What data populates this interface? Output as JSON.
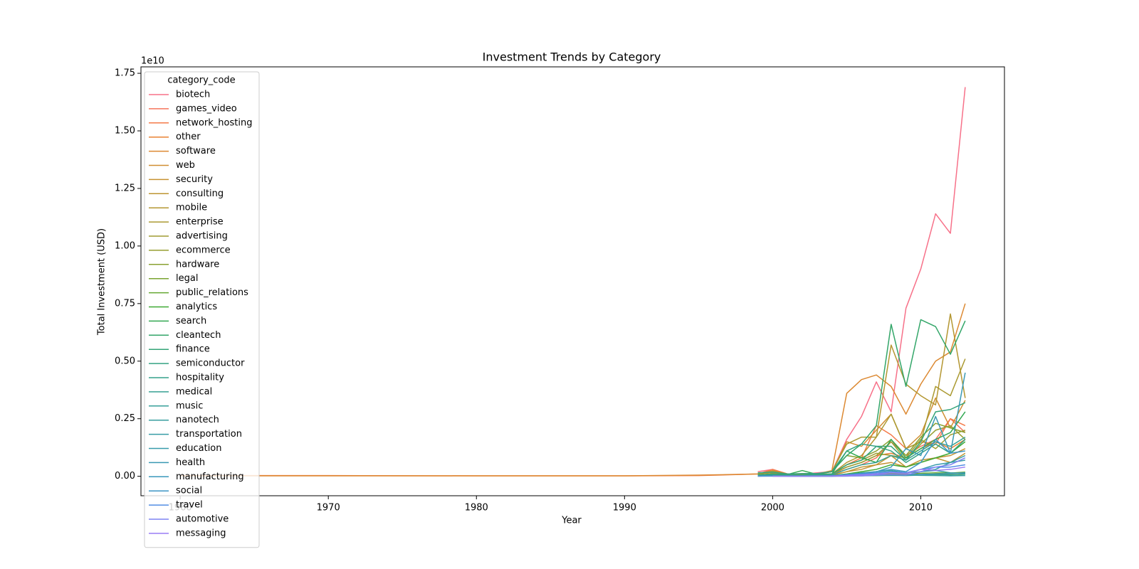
{
  "chart_data": {
    "type": "line",
    "title": "Investment Trends by Category",
    "x_label": "Year",
    "y_label": "Total Investment (USD)",
    "y_offset_text": "1e10",
    "legend_title": "category_code",
    "legend": "upper left",
    "grid": false,
    "xlim": [
      1957.35,
      2015.65
    ],
    "xticks": [
      1960,
      1970,
      1980,
      1990,
      2000,
      2010
    ],
    "ylim": [
      -845000000,
      17780000000
    ],
    "yticks": [
      {
        "value": 0,
        "label": "0.00"
      },
      {
        "value": 2500000000,
        "label": "0.25"
      },
      {
        "value": 5000000000,
        "label": "0.50"
      },
      {
        "value": 7500000000,
        "label": "0.75"
      },
      {
        "value": 10000000000,
        "label": "1.00"
      },
      {
        "value": 12500000000,
        "label": "1.25"
      },
      {
        "value": 15000000000,
        "label": "1.50"
      },
      {
        "value": 17500000000,
        "label": "1.75"
      }
    ],
    "x": [
      1960,
      1970,
      1980,
      1990,
      1995,
      1999,
      2000,
      2001,
      2002,
      2003,
      2004,
      2005,
      2006,
      2007,
      2008,
      2009,
      2010,
      2011,
      2012,
      2013
    ],
    "series": [
      {
        "name": "biotech",
        "color": "#f77189",
        "values": [
          null,
          null,
          null,
          null,
          null,
          200000000.0,
          300000000.0,
          100000000.0,
          100000000.0,
          150000000.0,
          200000000.0,
          1600000000.0,
          2600000000.0,
          4100000000.0,
          2800000000.0,
          7300000000.0,
          9000000000.0,
          11400000000.0,
          10550000000.0,
          16900000000.0
        ]
      },
      {
        "name": "games_video",
        "color": "#f6745c",
        "values": [
          null,
          null,
          null,
          null,
          null,
          50000000.0,
          100000000.0,
          50000000.0,
          50000000.0,
          50000000.0,
          100000000.0,
          300000000.0,
          500000000.0,
          800000000.0,
          1500000000.0,
          900000000.0,
          1300000000.0,
          1600000000.0,
          2500000000.0,
          1900000000.0
        ]
      },
      {
        "name": "network_hosting",
        "color": "#f47a49",
        "values": [
          30000000.0,
          30000000.0,
          20000000.0,
          20000000.0,
          30000000.0,
          100000000.0,
          300000000.0,
          100000000.0,
          50000000.0,
          80000000.0,
          100000000.0,
          500000000.0,
          800000000.0,
          2200000000.0,
          1800000000.0,
          1200000000.0,
          1500000000.0,
          1400000000.0,
          2500000000.0,
          2200000000.0
        ]
      },
      {
        "name": "other",
        "color": "#e98132",
        "values": [
          null,
          null,
          null,
          null,
          null,
          50000000.0,
          100000000.0,
          100000000.0,
          50000000.0,
          50000000.0,
          100000000.0,
          400000000.0,
          600000000.0,
          900000000.0,
          1000000000.0,
          800000000.0,
          1200000000.0,
          1500000000.0,
          1200000000.0,
          1600000000.0
        ]
      },
      {
        "name": "software",
        "color": "#dc8932",
        "values": [
          20000000.0,
          20000000.0,
          20000000.0,
          20000000.0,
          50000000.0,
          100000000.0,
          200000000.0,
          100000000.0,
          100000000.0,
          100000000.0,
          250000000.0,
          3600000000.0,
          4200000000.0,
          4400000000.0,
          3900000000.0,
          2700000000.0,
          4000000000.0,
          5000000000.0,
          5400000000.0,
          7500000000.0
        ]
      },
      {
        "name": "web",
        "color": "#d08e32",
        "values": [
          null,
          null,
          null,
          null,
          null,
          100000000.0,
          250000000.0,
          100000000.0,
          80000000.0,
          100000000.0,
          200000000.0,
          1500000000.0,
          1300000000.0,
          2000000000.0,
          2700000000.0,
          1200000000.0,
          1800000000.0,
          3400000000.0,
          2100000000.0,
          3300000000.0
        ]
      },
      {
        "name": "security",
        "color": "#c69232",
        "values": [
          null,
          null,
          null,
          null,
          null,
          10000000.0,
          30000000.0,
          20000000.0,
          20000000.0,
          30000000.0,
          50000000.0,
          200000000.0,
          300000000.0,
          500000000.0,
          600000000.0,
          400000000.0,
          600000000.0,
          800000000.0,
          900000000.0,
          1200000000.0
        ]
      },
      {
        "name": "consulting",
        "color": "#bd9532",
        "values": [
          null,
          null,
          null,
          null,
          null,
          20000000.0,
          50000000.0,
          30000000.0,
          20000000.0,
          30000000.0,
          50000000.0,
          200000000.0,
          400000000.0,
          500000000.0,
          900000000.0,
          400000000.0,
          700000000.0,
          800000000.0,
          600000000.0,
          1000000000.0
        ]
      },
      {
        "name": "mobile",
        "color": "#b49732",
        "values": [
          null,
          null,
          null,
          null,
          null,
          50000000.0,
          100000000.0,
          50000000.0,
          50000000.0,
          50000000.0,
          100000000.0,
          600000000.0,
          900000000.0,
          1700000000.0,
          5700000000.0,
          4000000000.0,
          3500000000.0,
          3100000000.0,
          7050000000.0,
          3400000000.0
        ]
      },
      {
        "name": "enterprise",
        "color": "#ab9a32",
        "values": [
          null,
          null,
          null,
          null,
          null,
          100000000.0,
          150000000.0,
          100000000.0,
          50000000.0,
          80000000.0,
          200000000.0,
          1400000000.0,
          1700000000.0,
          1700000000.0,
          2700000000.0,
          1200000000.0,
          1500000000.0,
          3900000000.0,
          3500000000.0,
          5100000000.0
        ]
      },
      {
        "name": "advertising",
        "color": "#a19c32",
        "values": [
          null,
          null,
          null,
          null,
          null,
          50000000.0,
          100000000.0,
          50000000.0,
          30000000.0,
          50000000.0,
          100000000.0,
          500000000.0,
          700000000.0,
          1000000000.0,
          900000000.0,
          800000000.0,
          1600000000.0,
          1200000000.0,
          1800000000.0,
          2000000000.0
        ]
      },
      {
        "name": "ecommerce",
        "color": "#969e31",
        "values": [
          null,
          null,
          null,
          null,
          null,
          50000000.0,
          80000000.0,
          50000000.0,
          30000000.0,
          50000000.0,
          100000000.0,
          400000000.0,
          600000000.0,
          900000000.0,
          1500000000.0,
          700000000.0,
          1400000000.0,
          2000000000.0,
          2200000000.0,
          1600000000.0
        ]
      },
      {
        "name": "hardware",
        "color": "#8aa131",
        "values": [
          null,
          null,
          null,
          null,
          null,
          100000000.0,
          200000000.0,
          100000000.0,
          80000000.0,
          100000000.0,
          200000000.0,
          900000000.0,
          800000000.0,
          1100000000.0,
          1600000000.0,
          900000000.0,
          1700000000.0,
          2300000000.0,
          2100000000.0,
          1900000000.0
        ]
      },
      {
        "name": "legal",
        "color": "#7aa431",
        "values": [
          null,
          null,
          null,
          null,
          null,
          null,
          null,
          null,
          null,
          10000000.0,
          10000000.0,
          20000000.0,
          30000000.0,
          30000000.0,
          50000000.0,
          40000000.0,
          60000000.0,
          80000000.0,
          70000000.0,
          90000000.0
        ]
      },
      {
        "name": "public_relations",
        "color": "#64a731",
        "values": [
          null,
          null,
          null,
          null,
          null,
          10000000.0,
          10000000.0,
          10000000.0,
          5000000.0,
          10000000.0,
          20000000.0,
          50000000.0,
          80000000.0,
          100000000.0,
          120000000.0,
          90000000.0,
          130000000.0,
          150000000.0,
          140000000.0,
          180000000.0
        ]
      },
      {
        "name": "analytics",
        "color": "#3ea932",
        "values": [
          null,
          null,
          null,
          null,
          null,
          10000000.0,
          20000000.0,
          10000000.0,
          10000000.0,
          20000000.0,
          30000000.0,
          100000000.0,
          200000000.0,
          300000000.0,
          500000000.0,
          400000000.0,
          600000000.0,
          800000000.0,
          1000000000.0,
          1500000000.0
        ]
      },
      {
        "name": "search",
        "color": "#32a852",
        "values": [
          null,
          null,
          null,
          null,
          null,
          50000000.0,
          100000000.0,
          80000000.0,
          250000000.0,
          80000000.0,
          100000000.0,
          1100000000.0,
          800000000.0,
          600000000.0,
          1600000000.0,
          800000000.0,
          1200000000.0,
          1600000000.0,
          1900000000.0,
          2800000000.0
        ]
      },
      {
        "name": "cleantech",
        "color": "#33a669",
        "values": [
          null,
          null,
          null,
          null,
          null,
          20000000.0,
          50000000.0,
          50000000.0,
          50000000.0,
          100000000.0,
          200000000.0,
          900000000.0,
          1400000000.0,
          2200000000.0,
          6600000000.0,
          3900000000.0,
          6800000000.0,
          6500000000.0,
          5300000000.0,
          6750000000.0
        ]
      },
      {
        "name": "finance",
        "color": "#34a478",
        "values": [
          null,
          null,
          null,
          null,
          null,
          50000000.0,
          100000000.0,
          50000000.0,
          50000000.0,
          80000000.0,
          100000000.0,
          500000000.0,
          700000000.0,
          1300000000.0,
          1300000000.0,
          700000000.0,
          1500000000.0,
          2800000000.0,
          2900000000.0,
          3200000000.0
        ]
      },
      {
        "name": "semiconductor",
        "color": "#35a283",
        "values": [
          null,
          null,
          null,
          null,
          null,
          150000000.0,
          180000000.0,
          100000000.0,
          120000000.0,
          120000000.0,
          200000000.0,
          1100000000.0,
          1400000000.0,
          1300000000.0,
          1100000000.0,
          600000000.0,
          1000000000.0,
          1400000000.0,
          1000000000.0,
          1600000000.0
        ]
      },
      {
        "name": "hospitality",
        "color": "#35a18b",
        "values": [
          null,
          null,
          null,
          null,
          null,
          null,
          null,
          1000000.0,
          2000000.0,
          3000000.0,
          5000000.0,
          10000000.0,
          20000000.0,
          30000000.0,
          40000000.0,
          30000000.0,
          50000000.0,
          80000000.0,
          60000000.0,
          90000000.0
        ]
      },
      {
        "name": "medical",
        "color": "#36a093",
        "values": [
          null,
          null,
          null,
          null,
          null,
          30000000.0,
          50000000.0,
          30000000.0,
          30000000.0,
          40000000.0,
          60000000.0,
          300000000.0,
          500000000.0,
          600000000.0,
          900000000.0,
          700000000.0,
          1100000000.0,
          1500000000.0,
          1300000000.0,
          1700000000.0
        ]
      },
      {
        "name": "music",
        "color": "#369f99",
        "values": [
          null,
          null,
          null,
          null,
          null,
          10000000.0,
          20000000.0,
          10000000.0,
          10000000.0,
          20000000.0,
          30000000.0,
          80000000.0,
          150000000.0,
          200000000.0,
          250000000.0,
          150000000.0,
          200000000.0,
          250000000.0,
          150000000.0,
          120000000.0
        ]
      },
      {
        "name": "nanotech",
        "color": "#379e9f",
        "values": [
          null,
          null,
          null,
          null,
          null,
          null,
          5000000.0,
          5000000.0,
          5000000.0,
          10000000.0,
          10000000.0,
          30000000.0,
          50000000.0,
          80000000.0,
          60000000.0,
          50000000.0,
          40000000.0,
          30000000.0,
          20000000.0,
          30000000.0
        ]
      },
      {
        "name": "transportation",
        "color": "#379da5",
        "values": [
          null,
          null,
          null,
          null,
          null,
          null,
          null,
          5000000.0,
          5000000.0,
          10000000.0,
          10000000.0,
          20000000.0,
          40000000.0,
          50000000.0,
          60000000.0,
          50000000.0,
          200000000.0,
          300000000.0,
          600000000.0,
          900000000.0
        ]
      },
      {
        "name": "education",
        "color": "#389bac",
        "values": [
          null,
          null,
          null,
          null,
          null,
          null,
          null,
          5000000.0,
          5000000.0,
          10000000.0,
          20000000.0,
          50000000.0,
          80000000.0,
          100000000.0,
          200000000.0,
          150000000.0,
          300000000.0,
          500000000.0,
          600000000.0,
          700000000.0
        ]
      },
      {
        "name": "health",
        "color": "#3999b3",
        "values": [
          null,
          null,
          null,
          null,
          null,
          null,
          null,
          5000000.0,
          10000000.0,
          10000000.0,
          20000000.0,
          80000000.0,
          120000000.0,
          200000000.0,
          400000000.0,
          1200000000.0,
          900000000.0,
          2600000000.0,
          1000000000.0,
          4500000000.0
        ]
      },
      {
        "name": "manufacturing",
        "color": "#3a98bb",
        "values": [
          null,
          null,
          null,
          null,
          null,
          null,
          null,
          null,
          5000000.0,
          10000000.0,
          10000000.0,
          20000000.0,
          40000000.0,
          50000000.0,
          60000000.0,
          50000000.0,
          80000000.0,
          100000000.0,
          120000000.0,
          150000000.0
        ]
      },
      {
        "name": "social",
        "color": "#3c95c5",
        "values": [
          null,
          null,
          null,
          null,
          null,
          null,
          null,
          null,
          null,
          5000000.0,
          10000000.0,
          50000000.0,
          100000000.0,
          200000000.0,
          300000000.0,
          200000000.0,
          600000000.0,
          1600000000.0,
          1000000000.0,
          1100000000.0
        ]
      },
      {
        "name": "travel",
        "color": "#528de4",
        "values": [
          null,
          null,
          null,
          null,
          null,
          5000000.0,
          10000000.0,
          5000000.0,
          5000000.0,
          10000000.0,
          20000000.0,
          60000000.0,
          100000000.0,
          150000000.0,
          200000000.0,
          150000000.0,
          300000000.0,
          400000000.0,
          400000000.0,
          500000000.0
        ]
      },
      {
        "name": "automotive",
        "color": "#7e83f4",
        "values": [
          null,
          null,
          null,
          null,
          null,
          null,
          null,
          null,
          null,
          null,
          5000000.0,
          10000000.0,
          20000000.0,
          50000000.0,
          80000000.0,
          60000000.0,
          200000000.0,
          400000000.0,
          500000000.0,
          800000000.0
        ]
      },
      {
        "name": "messaging",
        "color": "#9a7cf4",
        "values": [
          null,
          null,
          null,
          null,
          null,
          null,
          5000000.0,
          5000000.0,
          5000000.0,
          10000000.0,
          10000000.0,
          30000000.0,
          60000000.0,
          100000000.0,
          150000000.0,
          120000000.0,
          300000000.0,
          250000000.0,
          300000000.0,
          400000000.0
        ]
      }
    ]
  }
}
